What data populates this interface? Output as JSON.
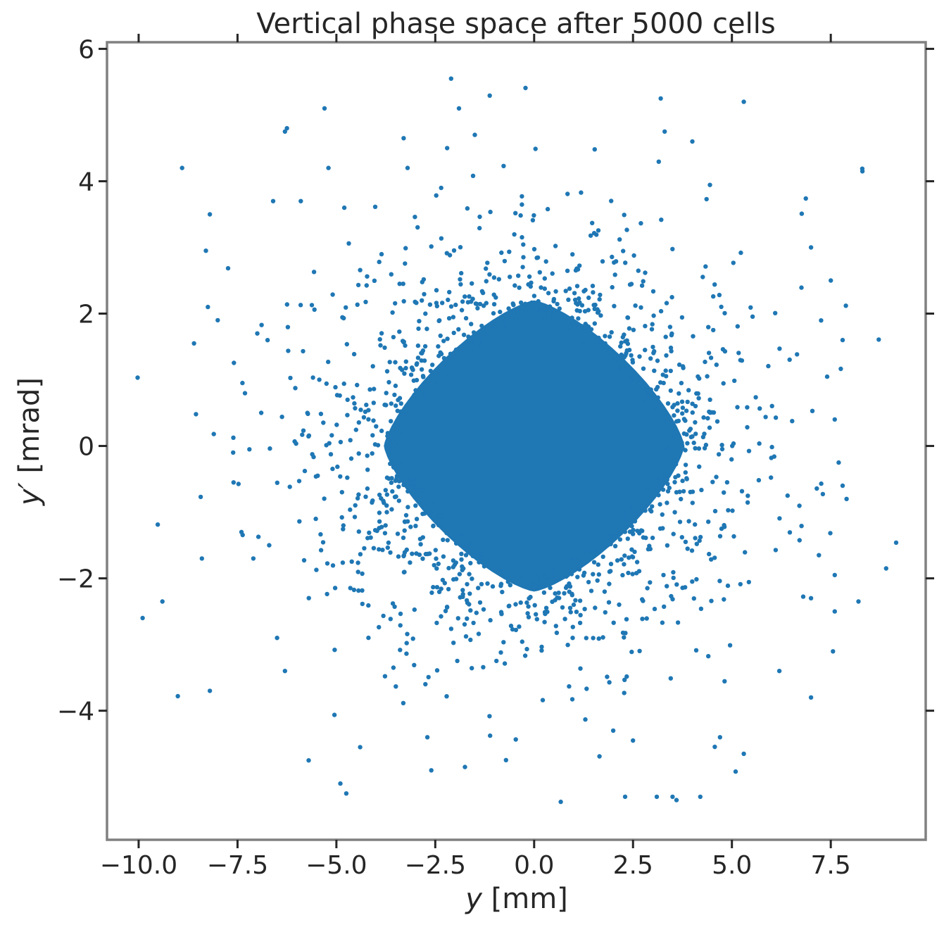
{
  "chart_data": {
    "type": "scatter",
    "title": "Vertical phase space after 5000 cells",
    "xlabel_main": "y",
    "xlabel_unit": " [mm]",
    "ylabel_main": "y′",
    "ylabel_unit": " [mrad]",
    "xlim": [
      -10.8,
      9.9
    ],
    "ylim": [
      -5.95,
      6.1
    ],
    "grid": false,
    "legend": "none",
    "x_ticks": [
      {
        "value": -10.0,
        "label": "−10.0"
      },
      {
        "value": -7.5,
        "label": "−7.5"
      },
      {
        "value": -5.0,
        "label": "−5.0"
      },
      {
        "value": -2.5,
        "label": "−2.5"
      },
      {
        "value": 0.0,
        "label": "0.0"
      },
      {
        "value": 2.5,
        "label": "2.5"
      },
      {
        "value": 5.0,
        "label": "5.0"
      },
      {
        "value": 7.5,
        "label": "7.5"
      }
    ],
    "y_ticks": [
      {
        "value": -4,
        "label": "−4"
      },
      {
        "value": -2,
        "label": "−2"
      },
      {
        "value": 0,
        "label": "0"
      },
      {
        "value": 2,
        "label": "2"
      },
      {
        "value": 4,
        "label": "4"
      },
      {
        "value": 6,
        "label": "6"
      }
    ],
    "series": [
      {
        "color": "#1f77b4",
        "core": {
          "shape": "diamond",
          "center": [
            0.0,
            0.0
          ],
          "x_half_width": 3.8,
          "y_half_height": 2.2
        },
        "outliers": [
          [
            -9.9,
            -2.6
          ],
          [
            -9.4,
            -2.35
          ],
          [
            -8.9,
            4.2
          ],
          [
            -8.6,
            1.55
          ],
          [
            -8.55,
            0.48
          ],
          [
            -8.4,
            -1.7
          ],
          [
            -8.3,
            2.95
          ],
          [
            -8.25,
            2.1
          ],
          [
            -8.2,
            3.5
          ],
          [
            -8.2,
            -3.7
          ],
          [
            -8.1,
            0.18
          ],
          [
            -8.0,
            1.9
          ],
          [
            -7.6,
            -0.55
          ],
          [
            -7.4,
            -1.3
          ],
          [
            -7.2,
            -0.05
          ],
          [
            -7.1,
            -1.7
          ],
          [
            -7.0,
            1.7
          ],
          [
            -6.9,
            0.5
          ],
          [
            -6.7,
            -1.5
          ],
          [
            -6.5,
            -2.9
          ],
          [
            -6.3,
            4.75
          ],
          [
            -6.25,
            4.8
          ],
          [
            -6.3,
            -3.4
          ],
          [
            -6.6,
            3.7
          ],
          [
            -5.7,
            -4.75
          ],
          [
            -5.9,
            3.7
          ],
          [
            -5.3,
            5.1
          ],
          [
            -5.2,
            4.2
          ],
          [
            -4.8,
            3.6
          ],
          [
            -4.75,
            -5.25
          ],
          [
            -4.9,
            -5.1
          ],
          [
            -4.4,
            -4.55
          ],
          [
            -3.3,
            4.65
          ],
          [
            -3.2,
            4.2
          ],
          [
            -2.2,
            4.5
          ],
          [
            -2.1,
            5.55
          ],
          [
            -1.9,
            5.1
          ],
          [
            -1.5,
            4.7
          ],
          [
            -2.6,
            -4.9
          ],
          [
            -1.75,
            -4.85
          ],
          [
            -2.7,
            -4.4
          ],
          [
            3.2,
            5.25
          ],
          [
            5.3,
            5.2
          ],
          [
            3.3,
            4.75
          ],
          [
            4.0,
            4.6
          ],
          [
            8.3,
            4.15
          ],
          [
            7.5,
            2.5
          ],
          [
            7.8,
            1.6
          ],
          [
            7.0,
            3.0
          ],
          [
            7.6,
            0.4
          ],
          [
            7.7,
            -0.25
          ],
          [
            7.8,
            -0.6
          ],
          [
            7.9,
            -0.8
          ],
          [
            7.6,
            -1.95
          ],
          [
            7.2,
            -1.65
          ],
          [
            7.0,
            -2.3
          ],
          [
            7.6,
            -2.5
          ],
          [
            8.2,
            -2.35
          ],
          [
            8.9,
            -1.85
          ],
          [
            7.0,
            -3.8
          ],
          [
            6.2,
            -3.4
          ],
          [
            5.3,
            -4.65
          ],
          [
            4.7,
            -4.4
          ],
          [
            4.2,
            -5.3
          ],
          [
            3.5,
            -5.3
          ],
          [
            3.1,
            -5.3
          ],
          [
            2.3,
            -5.3
          ],
          [
            3.6,
            -5.35
          ],
          [
            2.5,
            -4.45
          ],
          [
            2.0,
            -4.3
          ]
        ]
      }
    ]
  }
}
